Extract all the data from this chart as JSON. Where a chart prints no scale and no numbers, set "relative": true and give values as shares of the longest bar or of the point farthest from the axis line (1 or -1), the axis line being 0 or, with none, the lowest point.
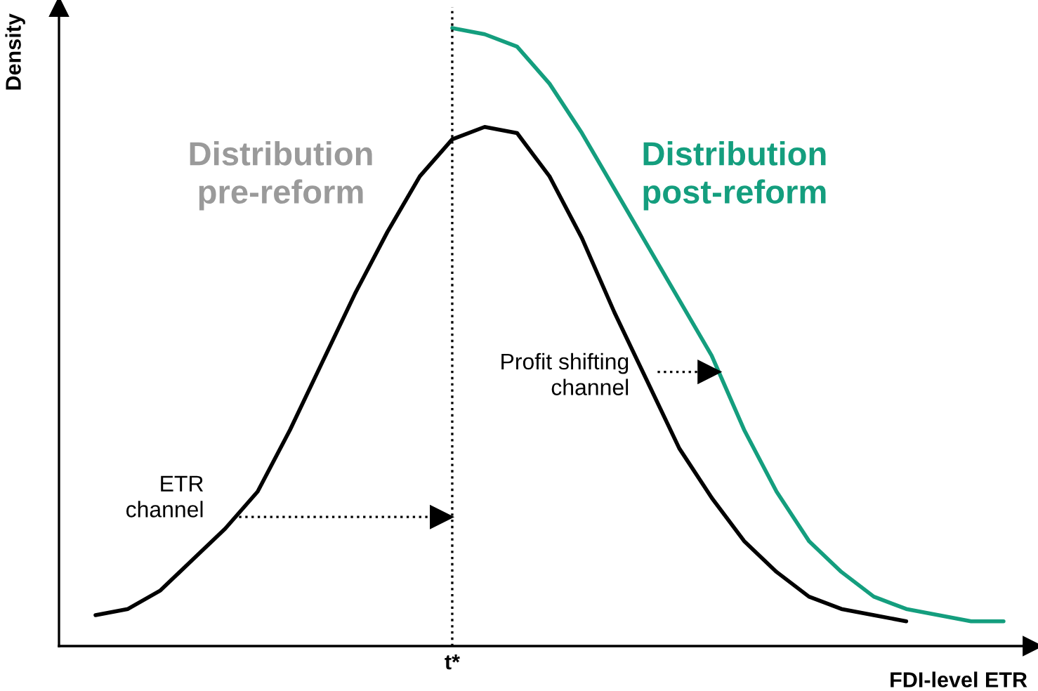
{
  "chart_data": {
    "type": "line",
    "relative": true,
    "xlabel": "FDI-level ETR",
    "ylabel": "Density",
    "categories": [
      null,
      null,
      null,
      null,
      null,
      null,
      null,
      null,
      null,
      null,
      null,
      null,
      null,
      null,
      null,
      null,
      null,
      null,
      null,
      null,
      null,
      null,
      null,
      null,
      null,
      null,
      null,
      null,
      null
    ],
    "series": [
      {
        "name": "Distribution pre-reform",
        "color": "#000000",
        "values": [
          0.05,
          0.06,
          0.09,
          0.14,
          0.19,
          0.25,
          0.35,
          0.46,
          0.57,
          0.67,
          0.76,
          0.82,
          0.84,
          0.83,
          0.76,
          0.66,
          0.54,
          0.43,
          0.32,
          0.24,
          0.17,
          0.12,
          0.08,
          0.06,
          0.05,
          0.04,
          null,
          null,
          null
        ]
      },
      {
        "name": "Distribution post-reform",
        "color": "#149e7e",
        "values": [
          null,
          null,
          null,
          null,
          null,
          null,
          null,
          null,
          null,
          null,
          null,
          1.0,
          0.99,
          0.97,
          0.91,
          0.83,
          0.74,
          0.65,
          0.56,
          0.47,
          0.35,
          0.25,
          0.17,
          0.12,
          0.08,
          0.06,
          0.05,
          0.04,
          0.04
        ]
      }
    ],
    "annotations": [
      "ETR channel",
      "Profit shifting channel",
      "t*"
    ],
    "marker": "none",
    "line_style": "solid"
  }
}
